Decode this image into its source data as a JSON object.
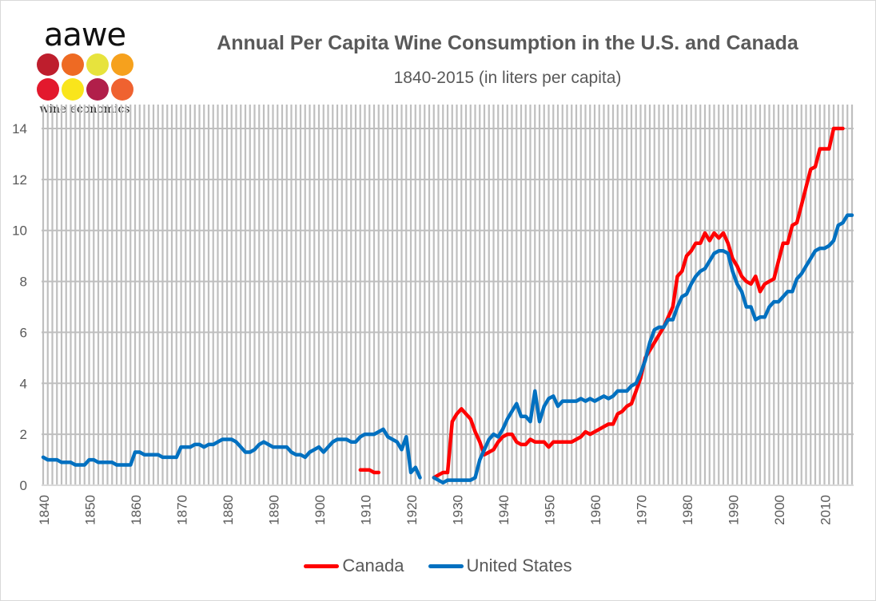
{
  "logo": {
    "wordmark": "aawe",
    "tagline": "wine economics",
    "dot_colors": [
      "#be1e2d",
      "#ee6a23",
      "#e7e33d",
      "#f6a11d",
      "#e3192d",
      "#f9e51c",
      "#b11f4a",
      "#ef6230"
    ]
  },
  "chart_data": {
    "type": "line",
    "title": "Annual Per Capita Wine Consumption in the U.S. and Canada",
    "subtitle": "1840-2015 (in liters per capita)",
    "xlabel": "",
    "ylabel": "",
    "xlim": [
      1840,
      2015
    ],
    "ylim": [
      0,
      14
    ],
    "y_ticks": [
      "0",
      "2",
      "4",
      "6",
      "8",
      "10",
      "12",
      "14"
    ],
    "x_ticks": [
      "1840",
      "1850",
      "1860",
      "1870",
      "1880",
      "1890",
      "1900",
      "1910",
      "1920",
      "1930",
      "1940",
      "1950",
      "1960",
      "1970",
      "1980",
      "1990",
      "2000",
      "2010"
    ],
    "grid": "vertical every year, horizontal every 2",
    "legend": "bottom",
    "series": [
      {
        "name": "Canada",
        "color": "#ff0000",
        "points": [
          [
            1909,
            0.6
          ],
          [
            1910,
            0.6
          ],
          [
            1911,
            0.6
          ],
          [
            1912,
            0.5
          ],
          [
            1913,
            0.5
          ],
          null,
          [
            1925,
            0.3
          ],
          [
            1926,
            0.4
          ],
          [
            1927,
            0.5
          ],
          [
            1928,
            0.5
          ],
          [
            1929,
            2.5
          ],
          [
            1930,
            2.8
          ],
          [
            1931,
            3.0
          ],
          [
            1932,
            2.8
          ],
          [
            1933,
            2.6
          ],
          [
            1934,
            2.1
          ],
          [
            1935,
            1.7
          ],
          [
            1936,
            1.2
          ],
          [
            1937,
            1.3
          ],
          [
            1938,
            1.4
          ],
          [
            1939,
            1.7
          ],
          [
            1940,
            1.9
          ],
          [
            1941,
            2.0
          ],
          [
            1942,
            2.0
          ],
          [
            1943,
            1.7
          ],
          [
            1944,
            1.6
          ],
          [
            1945,
            1.6
          ],
          [
            1946,
            1.8
          ],
          [
            1947,
            1.7
          ],
          [
            1948,
            1.7
          ],
          [
            1949,
            1.7
          ],
          [
            1950,
            1.5
          ],
          [
            1951,
            1.7
          ],
          [
            1952,
            1.7
          ],
          [
            1953,
            1.7
          ],
          [
            1954,
            1.7
          ],
          [
            1955,
            1.7
          ],
          [
            1956,
            1.8
          ],
          [
            1957,
            1.9
          ],
          [
            1958,
            2.1
          ],
          [
            1959,
            2.0
          ],
          [
            1960,
            2.1
          ],
          [
            1961,
            2.2
          ],
          [
            1962,
            2.3
          ],
          [
            1963,
            2.4
          ],
          [
            1964,
            2.4
          ],
          [
            1965,
            2.8
          ],
          [
            1966,
            2.9
          ],
          [
            1967,
            3.1
          ],
          [
            1968,
            3.2
          ],
          [
            1969,
            3.7
          ],
          [
            1970,
            4.2
          ],
          [
            1971,
            5.0
          ],
          [
            1972,
            5.3
          ],
          [
            1973,
            5.6
          ],
          [
            1974,
            5.9
          ],
          [
            1975,
            6.2
          ],
          [
            1976,
            6.6
          ],
          [
            1977,
            7.0
          ],
          [
            1978,
            8.2
          ],
          [
            1979,
            8.4
          ],
          [
            1980,
            9.0
          ],
          [
            1981,
            9.2
          ],
          [
            1982,
            9.5
          ],
          [
            1983,
            9.5
          ],
          [
            1984,
            9.9
          ],
          [
            1985,
            9.6
          ],
          [
            1986,
            9.9
          ],
          [
            1987,
            9.7
          ],
          [
            1988,
            9.9
          ],
          [
            1989,
            9.5
          ],
          [
            1990,
            8.9
          ],
          [
            1991,
            8.6
          ],
          [
            1992,
            8.2
          ],
          [
            1993,
            8.0
          ],
          [
            1994,
            7.9
          ],
          [
            1995,
            8.2
          ],
          [
            1996,
            7.6
          ],
          [
            1997,
            7.9
          ],
          [
            1998,
            8.0
          ],
          [
            1999,
            8.1
          ],
          [
            2000,
            8.8
          ],
          [
            2001,
            9.5
          ],
          [
            2002,
            9.5
          ],
          [
            2003,
            10.2
          ],
          [
            2004,
            10.3
          ],
          [
            2005,
            11.0
          ],
          [
            2006,
            11.7
          ],
          [
            2007,
            12.4
          ],
          [
            2008,
            12.5
          ],
          [
            2009,
            13.2
          ],
          [
            2010,
            13.2
          ],
          [
            2011,
            13.2
          ],
          [
            2012,
            14.0
          ],
          [
            2013,
            14.0
          ],
          [
            2014,
            14.0
          ]
        ]
      },
      {
        "name": "United States",
        "color": "#0070c0",
        "points": [
          [
            1840,
            1.1
          ],
          [
            1841,
            1.0
          ],
          [
            1842,
            1.0
          ],
          [
            1843,
            1.0
          ],
          [
            1844,
            0.9
          ],
          [
            1845,
            0.9
          ],
          [
            1846,
            0.9
          ],
          [
            1847,
            0.8
          ],
          [
            1848,
            0.8
          ],
          [
            1849,
            0.8
          ],
          [
            1850,
            1.0
          ],
          [
            1851,
            1.0
          ],
          [
            1852,
            0.9
          ],
          [
            1853,
            0.9
          ],
          [
            1854,
            0.9
          ],
          [
            1855,
            0.9
          ],
          [
            1856,
            0.8
          ],
          [
            1857,
            0.8
          ],
          [
            1858,
            0.8
          ],
          [
            1859,
            0.8
          ],
          [
            1860,
            1.3
          ],
          [
            1861,
            1.3
          ],
          [
            1862,
            1.2
          ],
          [
            1863,
            1.2
          ],
          [
            1864,
            1.2
          ],
          [
            1865,
            1.2
          ],
          [
            1866,
            1.1
          ],
          [
            1867,
            1.1
          ],
          [
            1868,
            1.1
          ],
          [
            1869,
            1.1
          ],
          [
            1870,
            1.5
          ],
          [
            1871,
            1.5
          ],
          [
            1872,
            1.5
          ],
          [
            1873,
            1.6
          ],
          [
            1874,
            1.6
          ],
          [
            1875,
            1.5
          ],
          [
            1876,
            1.6
          ],
          [
            1877,
            1.6
          ],
          [
            1878,
            1.7
          ],
          [
            1879,
            1.8
          ],
          [
            1880,
            1.8
          ],
          [
            1881,
            1.8
          ],
          [
            1882,
            1.7
          ],
          [
            1883,
            1.5
          ],
          [
            1884,
            1.3
          ],
          [
            1885,
            1.3
          ],
          [
            1886,
            1.4
          ],
          [
            1887,
            1.6
          ],
          [
            1888,
            1.7
          ],
          [
            1889,
            1.6
          ],
          [
            1890,
            1.5
          ],
          [
            1891,
            1.5
          ],
          [
            1892,
            1.5
          ],
          [
            1893,
            1.5
          ],
          [
            1894,
            1.3
          ],
          [
            1895,
            1.2
          ],
          [
            1896,
            1.2
          ],
          [
            1897,
            1.1
          ],
          [
            1898,
            1.3
          ],
          [
            1899,
            1.4
          ],
          [
            1900,
            1.5
          ],
          [
            1901,
            1.3
          ],
          [
            1902,
            1.5
          ],
          [
            1903,
            1.7
          ],
          [
            1904,
            1.8
          ],
          [
            1905,
            1.8
          ],
          [
            1906,
            1.8
          ],
          [
            1907,
            1.7
          ],
          [
            1908,
            1.7
          ],
          [
            1909,
            1.9
          ],
          [
            1910,
            2.0
          ],
          [
            1911,
            2.0
          ],
          [
            1912,
            2.0
          ],
          [
            1913,
            2.1
          ],
          [
            1914,
            2.2
          ],
          [
            1915,
            1.9
          ],
          [
            1916,
            1.8
          ],
          [
            1917,
            1.7
          ],
          [
            1918,
            1.4
          ],
          [
            1919,
            1.9
          ],
          [
            1920,
            0.5
          ],
          [
            1921,
            0.7
          ],
          [
            1922,
            0.3
          ],
          null,
          [
            1925,
            0.3
          ],
          [
            1926,
            0.2
          ],
          [
            1927,
            0.1
          ],
          [
            1928,
            0.2
          ],
          [
            1929,
            0.2
          ],
          [
            1930,
            0.2
          ],
          [
            1931,
            0.2
          ],
          [
            1932,
            0.2
          ],
          [
            1933,
            0.2
          ],
          [
            1934,
            0.3
          ],
          [
            1935,
            1.0
          ],
          [
            1936,
            1.4
          ],
          [
            1937,
            1.8
          ],
          [
            1938,
            2.0
          ],
          [
            1939,
            1.9
          ],
          [
            1940,
            2.2
          ],
          [
            1941,
            2.6
          ],
          [
            1942,
            2.9
          ],
          [
            1943,
            3.2
          ],
          [
            1944,
            2.7
          ],
          [
            1945,
            2.7
          ],
          [
            1946,
            2.5
          ],
          [
            1947,
            3.7
          ],
          [
            1948,
            2.5
          ],
          [
            1949,
            3.1
          ],
          [
            1950,
            3.4
          ],
          [
            1951,
            3.5
          ],
          [
            1952,
            3.1
          ],
          [
            1953,
            3.3
          ],
          [
            1954,
            3.3
          ],
          [
            1955,
            3.3
          ],
          [
            1956,
            3.3
          ],
          [
            1957,
            3.4
          ],
          [
            1958,
            3.3
          ],
          [
            1959,
            3.4
          ],
          [
            1960,
            3.3
          ],
          [
            1961,
            3.4
          ],
          [
            1962,
            3.5
          ],
          [
            1963,
            3.4
          ],
          [
            1964,
            3.5
          ],
          [
            1965,
            3.7
          ],
          [
            1966,
            3.7
          ],
          [
            1967,
            3.7
          ],
          [
            1968,
            3.9
          ],
          [
            1969,
            4.0
          ],
          [
            1970,
            4.4
          ],
          [
            1971,
            4.9
          ],
          [
            1972,
            5.6
          ],
          [
            1973,
            6.1
          ],
          [
            1974,
            6.2
          ],
          [
            1975,
            6.2
          ],
          [
            1976,
            6.5
          ],
          [
            1977,
            6.5
          ],
          [
            1978,
            7.0
          ],
          [
            1979,
            7.4
          ],
          [
            1980,
            7.5
          ],
          [
            1981,
            7.9
          ],
          [
            1982,
            8.2
          ],
          [
            1983,
            8.4
          ],
          [
            1984,
            8.5
          ],
          [
            1985,
            8.8
          ],
          [
            1986,
            9.1
          ],
          [
            1987,
            9.2
          ],
          [
            1988,
            9.2
          ],
          [
            1989,
            9.1
          ],
          [
            1990,
            8.4
          ],
          [
            1991,
            7.9
          ],
          [
            1992,
            7.6
          ],
          [
            1993,
            7.0
          ],
          [
            1994,
            7.0
          ],
          [
            1995,
            6.5
          ],
          [
            1996,
            6.6
          ],
          [
            1997,
            6.6
          ],
          [
            1998,
            7.0
          ],
          [
            1999,
            7.2
          ],
          [
            2000,
            7.2
          ],
          [
            2001,
            7.4
          ],
          [
            2002,
            7.6
          ],
          [
            2003,
            7.6
          ],
          [
            2004,
            8.1
          ],
          [
            2005,
            8.3
          ],
          [
            2006,
            8.6
          ],
          [
            2007,
            8.9
          ],
          [
            2008,
            9.2
          ],
          [
            2009,
            9.3
          ],
          [
            2010,
            9.3
          ],
          [
            2011,
            9.4
          ],
          [
            2012,
            9.6
          ],
          [
            2013,
            10.2
          ],
          [
            2014,
            10.3
          ],
          [
            2015,
            10.6
          ],
          [
            2016,
            10.6
          ]
        ]
      }
    ]
  }
}
